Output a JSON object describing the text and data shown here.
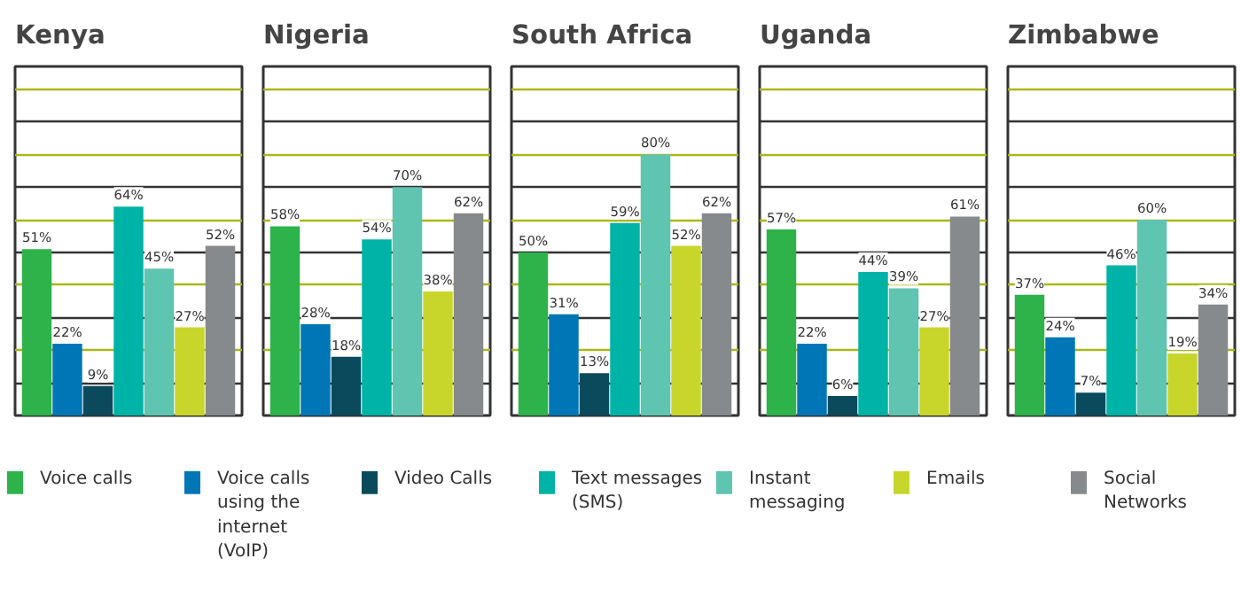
{
  "chart_data": [
    {
      "type": "bar",
      "title": "Kenya",
      "categories": [
        null
      ],
      "ylim": [
        0,
        107
      ],
      "yticks": [
        {
          "value": 10,
          "label": null
        },
        {
          "value": 20,
          "label": null
        },
        {
          "value": 30,
          "label": null
        },
        {
          "value": 40,
          "label": null
        },
        {
          "value": 50,
          "label": null
        },
        {
          "value": 60,
          "label": null
        },
        {
          "value": 70,
          "label": null
        },
        {
          "value": 80,
          "label": null
        },
        {
          "value": 90,
          "label": null
        },
        {
          "value": 100,
          "label": null
        }
      ],
      "grid": "y",
      "tick_labels": false,
      "legend": "bottom",
      "series": [
        {
          "name": "Voice calls",
          "color": "#2db34a",
          "values": [
            51
          ],
          "value_labels": [
            "51%"
          ]
        },
        {
          "name": "Voice calls using the internet (VoIP)",
          "color": "#0076b6",
          "values": [
            22
          ],
          "value_labels": [
            "22%"
          ]
        },
        {
          "name": "Video Calls",
          "color": "#0b4a5c",
          "values": [
            9
          ],
          "value_labels": [
            "9%"
          ]
        },
        {
          "name": "Text messages (SMS)",
          "color": "#00b3a7",
          "values": [
            64
          ],
          "value_labels": [
            "64%"
          ]
        },
        {
          "name": "Instant messaging",
          "color": "#5fc4b0",
          "values": [
            45
          ],
          "value_labels": [
            "45%"
          ]
        },
        {
          "name": "Emails",
          "color": "#c8d62b",
          "values": [
            27
          ],
          "value_labels": [
            "27%"
          ]
        },
        {
          "name": "Social Networks",
          "color": "#878a8c",
          "values": [
            52
          ],
          "value_labels": [
            "52%"
          ]
        }
      ]
    },
    {
      "type": "bar",
      "title": "Nigeria",
      "categories": [
        null
      ],
      "ylim": [
        0,
        107
      ],
      "yticks": [
        {
          "value": 10,
          "label": null
        },
        {
          "value": 20,
          "label": null
        },
        {
          "value": 30,
          "label": null
        },
        {
          "value": 40,
          "label": null
        },
        {
          "value": 50,
          "label": null
        },
        {
          "value": 60,
          "label": null
        },
        {
          "value": 70,
          "label": null
        },
        {
          "value": 80,
          "label": null
        },
        {
          "value": 90,
          "label": null
        },
        {
          "value": 100,
          "label": null
        }
      ],
      "grid": "y",
      "tick_labels": false,
      "legend": "bottom",
      "series": [
        {
          "name": "Voice calls",
          "color": "#2db34a",
          "values": [
            58
          ],
          "value_labels": [
            "58%"
          ]
        },
        {
          "name": "Voice calls using the internet (VoIP)",
          "color": "#0076b6",
          "values": [
            28
          ],
          "value_labels": [
            "28%"
          ]
        },
        {
          "name": "Video Calls",
          "color": "#0b4a5c",
          "values": [
            18
          ],
          "value_labels": [
            "18%"
          ]
        },
        {
          "name": "Text messages (SMS)",
          "color": "#00b3a7",
          "values": [
            54
          ],
          "value_labels": [
            "54%"
          ]
        },
        {
          "name": "Instant messaging",
          "color": "#5fc4b0",
          "values": [
            70
          ],
          "value_labels": [
            "70%"
          ]
        },
        {
          "name": "Emails",
          "color": "#c8d62b",
          "values": [
            38
          ],
          "value_labels": [
            "38%"
          ]
        },
        {
          "name": "Social Networks",
          "color": "#878a8c",
          "values": [
            62
          ],
          "value_labels": [
            "62%"
          ]
        }
      ]
    },
    {
      "type": "bar",
      "title": "South Africa",
      "categories": [
        null
      ],
      "ylim": [
        0,
        107
      ],
      "yticks": [
        {
          "value": 10,
          "label": null
        },
        {
          "value": 20,
          "label": null
        },
        {
          "value": 30,
          "label": null
        },
        {
          "value": 40,
          "label": null
        },
        {
          "value": 50,
          "label": null
        },
        {
          "value": 60,
          "label": null
        },
        {
          "value": 70,
          "label": null
        },
        {
          "value": 80,
          "label": null
        },
        {
          "value": 90,
          "label": null
        },
        {
          "value": 100,
          "label": null
        }
      ],
      "grid": "y",
      "tick_labels": false,
      "legend": "bottom",
      "series": [
        {
          "name": "Voice calls",
          "color": "#2db34a",
          "values": [
            50
          ],
          "value_labels": [
            "50%"
          ]
        },
        {
          "name": "Voice calls using the internet (VoIP)",
          "color": "#0076b6",
          "values": [
            31
          ],
          "value_labels": [
            "31%"
          ]
        },
        {
          "name": "Video Calls",
          "color": "#0b4a5c",
          "values": [
            13
          ],
          "value_labels": [
            "13%"
          ]
        },
        {
          "name": "Text messages (SMS)",
          "color": "#00b3a7",
          "values": [
            59
          ],
          "value_labels": [
            "59%"
          ]
        },
        {
          "name": "Instant messaging",
          "color": "#5fc4b0",
          "values": [
            80
          ],
          "value_labels": [
            "80%"
          ]
        },
        {
          "name": "Emails",
          "color": "#c8d62b",
          "values": [
            52
          ],
          "value_labels": [
            "52%"
          ]
        },
        {
          "name": "Social Networks",
          "color": "#878a8c",
          "values": [
            62
          ],
          "value_labels": [
            "62%"
          ]
        }
      ]
    },
    {
      "type": "bar",
      "title": "Uganda",
      "categories": [
        null
      ],
      "ylim": [
        0,
        107
      ],
      "yticks": [
        {
          "value": 10,
          "label": null
        },
        {
          "value": 20,
          "label": null
        },
        {
          "value": 30,
          "label": null
        },
        {
          "value": 40,
          "label": null
        },
        {
          "value": 50,
          "label": null
        },
        {
          "value": 60,
          "label": null
        },
        {
          "value": 70,
          "label": null
        },
        {
          "value": 80,
          "label": null
        },
        {
          "value": 90,
          "label": null
        },
        {
          "value": 100,
          "label": null
        }
      ],
      "grid": "y",
      "tick_labels": false,
      "legend": "bottom",
      "series": [
        {
          "name": "Voice calls",
          "color": "#2db34a",
          "values": [
            57
          ],
          "value_labels": [
            "57%"
          ]
        },
        {
          "name": "Voice calls using the internet (VoIP)",
          "color": "#0076b6",
          "values": [
            22
          ],
          "value_labels": [
            "22%"
          ]
        },
        {
          "name": "Video Calls",
          "color": "#0b4a5c",
          "values": [
            6
          ],
          "value_labels": [
            "6%"
          ]
        },
        {
          "name": "Text messages (SMS)",
          "color": "#00b3a7",
          "values": [
            44
          ],
          "value_labels": [
            "44%"
          ]
        },
        {
          "name": "Instant messaging",
          "color": "#5fc4b0",
          "values": [
            39
          ],
          "value_labels": [
            "39%"
          ]
        },
        {
          "name": "Emails",
          "color": "#c8d62b",
          "values": [
            27
          ],
          "value_labels": [
            "27%"
          ]
        },
        {
          "name": "Social Networks",
          "color": "#878a8c",
          "values": [
            61
          ],
          "value_labels": [
            "61%"
          ]
        }
      ]
    },
    {
      "type": "bar",
      "title": "Zimbabwe",
      "categories": [
        null
      ],
      "ylim": [
        0,
        107
      ],
      "yticks": [
        {
          "value": 10,
          "label": null
        },
        {
          "value": 20,
          "label": null
        },
        {
          "value": 30,
          "label": null
        },
        {
          "value": 40,
          "label": null
        },
        {
          "value": 50,
          "label": null
        },
        {
          "value": 60,
          "label": null
        },
        {
          "value": 70,
          "label": null
        },
        {
          "value": 80,
          "label": null
        },
        {
          "value": 90,
          "label": null
        },
        {
          "value": 100,
          "label": null
        }
      ],
      "grid": "y",
      "tick_labels": false,
      "legend": "bottom",
      "series": [
        {
          "name": "Voice calls",
          "color": "#2db34a",
          "values": [
            37
          ],
          "value_labels": [
            "37%"
          ]
        },
        {
          "name": "Voice calls using the internet (VoIP)",
          "color": "#0076b6",
          "values": [
            24
          ],
          "value_labels": [
            "24%"
          ]
        },
        {
          "name": "Video Calls",
          "color": "#0b4a5c",
          "values": [
            7
          ],
          "value_labels": [
            "7%"
          ]
        },
        {
          "name": "Text messages (SMS)",
          "color": "#00b3a7",
          "values": [
            46
          ],
          "value_labels": [
            "46%"
          ]
        },
        {
          "name": "Instant messaging",
          "color": "#5fc4b0",
          "values": [
            60
          ],
          "value_labels": [
            "60%"
          ]
        },
        {
          "name": "Emails",
          "color": "#c8d62b",
          "values": [
            19
          ],
          "value_labels": [
            "19%"
          ]
        },
        {
          "name": "Social Networks",
          "color": "#878a8c",
          "values": [
            34
          ],
          "value_labels": [
            "34%"
          ]
        }
      ]
    }
  ]
}
